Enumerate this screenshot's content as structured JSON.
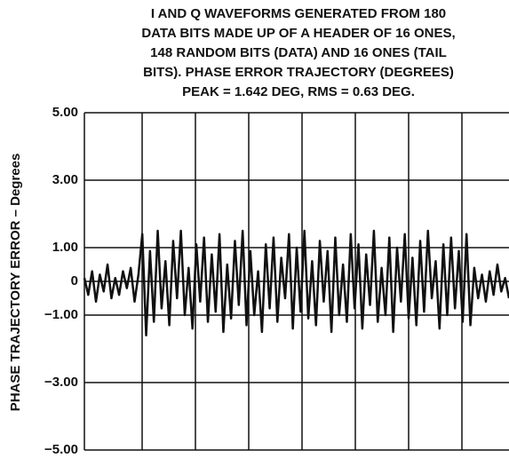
{
  "chart_data": {
    "type": "line",
    "title": [
      "I AND Q WAVEFORMS GENERATED FROM 180",
      "DATA BITS MADE UP OF A HEADER OF 16 ONES,",
      "148 RANDOM BITS (DATA) AND 16 ONES (TAIL",
      "BITS). PHASE ERROR TRAJECTORY (DEGREES)",
      "PEAK = 1.642 DEG, RMS = 0.63 DEG."
    ],
    "y_label": "PHASE TRAJECTORY ERROR – Degrees",
    "color": "#111111",
    "grid": true,
    "ylim": [
      -5,
      5
    ],
    "yticks": [
      {
        "value": -5,
        "label": "−5.00"
      },
      {
        "value": -3,
        "label": "−3.00"
      },
      {
        "value": -1,
        "label": "−1.00"
      },
      0,
      {
        "value": 1,
        "label": "1.00"
      },
      {
        "value": 3,
        "label": "3.00"
      },
      {
        "value": 5,
        "label": "5.00"
      }
    ],
    "values": [
      0.1,
      -0.4,
      0.3,
      -0.6,
      0.2,
      -0.3,
      0.5,
      -0.5,
      0.1,
      -0.4,
      0.3,
      -0.2,
      0.4,
      -0.6,
      0.2,
      1.4,
      -1.6,
      0.9,
      -1.2,
      1.5,
      -0.8,
      0.6,
      -1.3,
      1.2,
      -0.5,
      1.5,
      -1.0,
      0.4,
      -1.4,
      1.1,
      -0.6,
      1.3,
      -1.2,
      0.8,
      -0.9,
      1.4,
      -1.5,
      0.5,
      -1.1,
      1.2,
      -0.7,
      1.5,
      -1.3,
      0.9,
      -1.0,
      0.3,
      -1.5,
      1.1,
      -0.8,
      1.3,
      -1.2,
      0.7,
      -0.5,
      1.4,
      -1.4,
      1.0,
      -0.9,
      1.5,
      -1.1,
      0.6,
      -1.3,
      1.2,
      -0.6,
      0.9,
      -1.5,
      1.3,
      -1.0,
      0.5,
      -1.2,
      1.4,
      -0.8,
      1.1,
      -1.4,
      0.8,
      -0.7,
      1.5,
      -1.2,
      0.4,
      -1.0,
      1.3,
      -1.5,
      1.0,
      -0.6,
      1.4,
      -1.1,
      0.7,
      -1.3,
      1.2,
      -0.9,
      1.5,
      -0.5,
      0.6,
      -1.4,
      1.1,
      -1.0,
      1.3,
      -0.8,
      0.9,
      -1.2,
      1.4,
      -1.3,
      0.4,
      -0.5,
      0.2,
      -0.6,
      0.3,
      -0.4,
      0.5,
      -0.3,
      0.1,
      -0.5
    ]
  }
}
